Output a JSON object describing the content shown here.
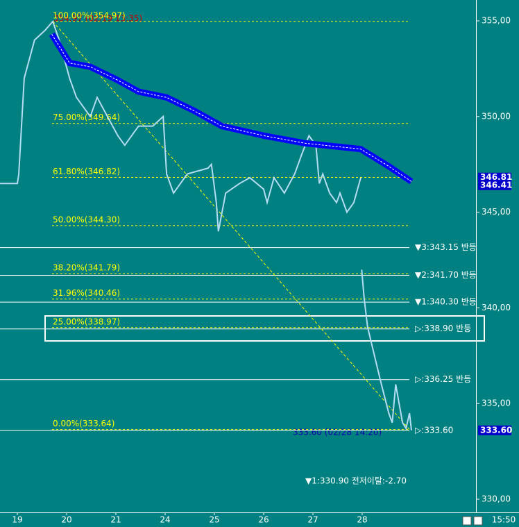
{
  "chart_data": {
    "type": "line",
    "background": "#008080",
    "ylim": [
      329.31,
      356.09
    ],
    "xlim": [
      -0.352,
      9.31
    ],
    "yticks": [
      {
        "value": 355,
        "label": "355,00"
      },
      {
        "value": 350,
        "label": "350,00"
      },
      {
        "value": 345,
        "label": "345,00"
      },
      {
        "value": 340,
        "label": "340,00"
      },
      {
        "value": 335,
        "label": "335,00"
      },
      {
        "value": 330,
        "label": "330,00"
      }
    ],
    "xticks": [
      {
        "value": 0,
        "label": "19"
      },
      {
        "value": 1,
        "label": "20"
      },
      {
        "value": 2,
        "label": "21"
      },
      {
        "value": 3,
        "label": "24"
      },
      {
        "value": 4,
        "label": "25"
      },
      {
        "value": 5,
        "label": "26"
      },
      {
        "value": 6,
        "label": "27"
      },
      {
        "value": 7,
        "label": "28"
      }
    ],
    "time_label": "15:50",
    "series": [
      {
        "color": "#b4dcf5",
        "x": [
          -0.35,
          0,
          0.03,
          0.14,
          0.35,
          0.56,
          0.72,
          0.85,
          1.06,
          1.2,
          1.48,
          1.62,
          1.83,
          2.04,
          2.18,
          2.46,
          2.75,
          2.96,
          3.03,
          3.17,
          3.45,
          3.87,
          3.94,
          4.04,
          4.08,
          4.23,
          4.51,
          4.72,
          5,
          5.07,
          5.21,
          5.42,
          5.63,
          5.77,
          5.92,
          6.06,
          6.13,
          6.2,
          6.34,
          6.48,
          6.55,
          6.69,
          6.83,
          6.97,
          6.98,
          6.99,
          7.04,
          7.11,
          7.25,
          7.39,
          7.49,
          7.54,
          7.61,
          7.68,
          7.75,
          7.82,
          7.89,
          7.96,
          8
        ],
        "values": [
          346.5,
          346.5,
          347,
          352,
          354,
          354.5,
          354.97,
          354,
          352,
          351,
          350,
          351,
          350,
          349,
          348.5,
          349.5,
          349.5,
          350,
          347,
          346,
          347,
          347.3,
          347.5,
          345.5,
          344,
          346,
          346.5,
          346.8,
          346.2,
          345.5,
          346.8,
          346,
          347,
          348,
          349,
          348.5,
          346.5,
          347,
          346,
          345.5,
          346,
          345,
          345.5,
          346.8,
          null,
          342,
          340.5,
          339,
          337.5,
          336,
          335,
          334.5,
          334,
          336,
          335,
          334,
          333.7,
          334.5,
          333.6
        ]
      },
      {
        "color": "#0000ff",
        "x": [
          0.7,
          1.06,
          1.48,
          2.04,
          2.46,
          3.03,
          3.59,
          4.15,
          5,
          5.85,
          6.97,
          7.54,
          8
        ],
        "values": [
          354.3,
          352.8,
          352.6,
          351.9,
          351.3,
          351,
          350.3,
          349.5,
          349,
          348.6,
          348.3,
          347.4,
          346.6
        ]
      }
    ],
    "trend_line": {
      "color": "#ffff00",
      "x": [
        0.72,
        7.96
      ],
      "values": [
        354.97,
        333.64
      ]
    },
    "fib_color": "#ffff00",
    "fib_levels": [
      {
        "value": 354.97,
        "label": "100.00%(354.97)"
      },
      {
        "value": 349.64,
        "label": "75.00%(349.64)"
      },
      {
        "value": 346.82,
        "label": "61.80%(346.82)"
      },
      {
        "value": 344.3,
        "label": "50.00%(344.30)"
      },
      {
        "value": 341.79,
        "label": "38.20%(341.79)"
      },
      {
        "value": 340.46,
        "label": "31.96%(340.46)"
      },
      {
        "value": 338.97,
        "label": "25.00%(338.97)"
      },
      {
        "value": 333.64,
        "label": "0.00%(333.64)"
      }
    ],
    "support_color": "#ffffff",
    "support_levels": [
      {
        "value": 343.15,
        "label": "▼3:343.15 반등"
      },
      {
        "value": 341.7,
        "label": "▼2:341.70 반등"
      },
      {
        "value": 340.3,
        "label": "▼1:340.30 반등"
      },
      {
        "value": 338.9,
        "label": "▷:338.90 반등"
      },
      {
        "value": 336.25,
        "label": "▷:336.25 반등"
      },
      {
        "value": 333.6,
        "label": "▷:333.60"
      }
    ],
    "price_tags": [
      {
        "value": 346.81,
        "label": "346.81"
      },
      {
        "value": 346.41,
        "label": "346.41"
      },
      {
        "value": 333.6,
        "label": "333.60"
      }
    ],
    "annotations": [
      "354.97 (02/19 13:35)",
      "333.60 (02/28 14:20)",
      "▼1:330.90 전저이탈:-2.70"
    ]
  }
}
